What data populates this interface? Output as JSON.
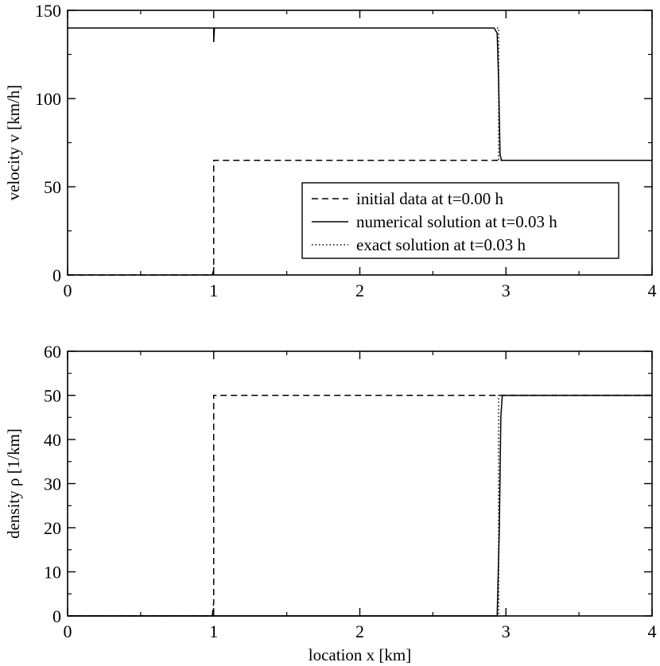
{
  "chart_data": [
    {
      "type": "line",
      "title": "",
      "xlabel": "",
      "ylabel": "velocity v [km/h]",
      "xlim": [
        0,
        4
      ],
      "ylim": [
        0,
        150
      ],
      "x_ticks": [
        "0",
        "1",
        "2",
        "3",
        "4"
      ],
      "y_ticks": [
        "0",
        "50",
        "100",
        "150"
      ],
      "grid": false,
      "legend_position": "center-right",
      "series": [
        {
          "name": "initial data at t=0.00 h",
          "style": "dashed",
          "x": [
            0,
            0.99,
            1.0,
            1.0,
            4.0
          ],
          "y": [
            0,
            0,
            3,
            65,
            65
          ]
        },
        {
          "name": "numerical solution at t=0.03 h",
          "style": "solid",
          "x": [
            0,
            1.0,
            1.0,
            1.005,
            2.92,
            2.94,
            2.95,
            2.96,
            2.97,
            4.0
          ],
          "y": [
            140,
            140,
            132,
            140,
            140,
            137,
            110,
            68,
            65,
            65
          ]
        },
        {
          "name": "exact solution at t=0.03 h",
          "style": "dotted",
          "x": [
            0,
            2.95,
            2.95,
            4.0
          ],
          "y": [
            140,
            140,
            65,
            65
          ]
        }
      ]
    },
    {
      "type": "line",
      "title": "",
      "xlabel": "location x [km]",
      "ylabel": "density  ρ  [1/km]",
      "xlim": [
        0,
        4
      ],
      "ylim": [
        0,
        60
      ],
      "x_ticks": [
        "0",
        "1",
        "2",
        "3",
        "4"
      ],
      "y_ticks": [
        "0",
        "10",
        "20",
        "30",
        "40",
        "50",
        "60"
      ],
      "grid": false,
      "legend_position": "none",
      "series": [
        {
          "name": "initial data at t=0.00 h",
          "style": "dashed",
          "x": [
            0,
            0.99,
            1.0,
            1.0,
            4.0
          ],
          "y": [
            0,
            0,
            3,
            50,
            50
          ]
        },
        {
          "name": "numerical solution at t=0.03 h",
          "style": "solid",
          "x": [
            0,
            2.94,
            2.955,
            2.965,
            2.975,
            4.0
          ],
          "y": [
            0,
            0,
            20,
            45,
            50,
            50
          ]
        },
        {
          "name": "exact solution at t=0.03 h",
          "style": "dotted",
          "x": [
            0,
            2.95,
            2.95,
            4.0
          ],
          "y": [
            0,
            0,
            50,
            50
          ]
        }
      ]
    }
  ]
}
